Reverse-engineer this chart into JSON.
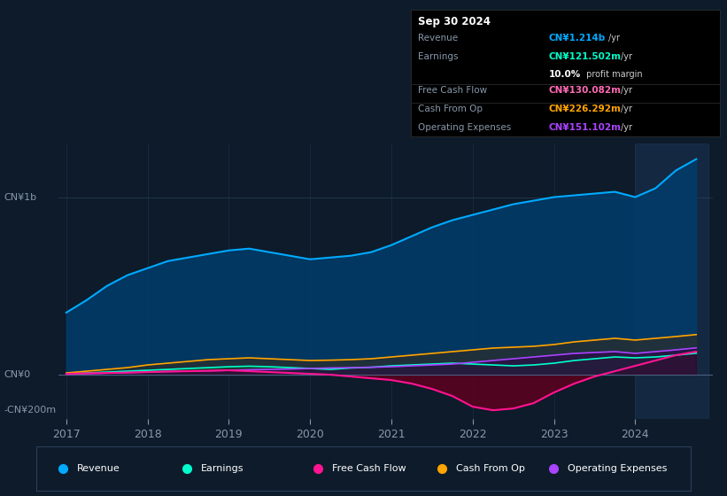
{
  "background_color": "#0d1b2a",
  "plot_bg_color": "#0d1b2a",
  "title_box": {
    "date": "Sep 30 2024",
    "rows": [
      {
        "label": "Revenue",
        "value": "CN¥1.214b",
        "unit": "/yr",
        "value_color": "#00aaff"
      },
      {
        "label": "Earnings",
        "value": "CN¥121.502m",
        "unit": "/yr",
        "value_color": "#00ffcc"
      },
      {
        "label": "",
        "value": "10.0%",
        "unit": " profit margin",
        "value_color": "#ffffff"
      },
      {
        "label": "Free Cash Flow",
        "value": "CN¥130.082m",
        "unit": "/yr",
        "value_color": "#ff69b4"
      },
      {
        "label": "Cash From Op",
        "value": "CN¥226.292m",
        "unit": "/yr",
        "value_color": "#ffa500"
      },
      {
        "label": "Operating Expenses",
        "value": "CN¥151.102m",
        "unit": "/yr",
        "value_color": "#aa44ff"
      }
    ]
  },
  "years": [
    2017.0,
    2017.25,
    2017.5,
    2017.75,
    2018.0,
    2018.25,
    2018.5,
    2018.75,
    2019.0,
    2019.25,
    2019.5,
    2019.75,
    2020.0,
    2020.25,
    2020.5,
    2020.75,
    2021.0,
    2021.25,
    2021.5,
    2021.75,
    2022.0,
    2022.25,
    2022.5,
    2022.75,
    2023.0,
    2023.25,
    2023.5,
    2023.75,
    2024.0,
    2024.25,
    2024.5,
    2024.75
  ],
  "revenue": [
    350,
    420,
    500,
    560,
    600,
    640,
    660,
    680,
    700,
    710,
    690,
    670,
    650,
    660,
    670,
    690,
    730,
    780,
    830,
    870,
    900,
    930,
    960,
    980,
    1000,
    1010,
    1020,
    1030,
    1000,
    1050,
    1150,
    1214
  ],
  "earnings": [
    5,
    10,
    15,
    20,
    25,
    30,
    35,
    40,
    45,
    48,
    45,
    40,
    35,
    30,
    38,
    42,
    50,
    55,
    60,
    65,
    60,
    55,
    50,
    55,
    65,
    80,
    90,
    100,
    95,
    100,
    110,
    121
  ],
  "free_cash_flow": [
    5,
    8,
    10,
    12,
    15,
    18,
    20,
    22,
    25,
    20,
    15,
    10,
    5,
    0,
    -10,
    -20,
    -30,
    -50,
    -80,
    -120,
    -180,
    -200,
    -190,
    -160,
    -100,
    -50,
    -10,
    20,
    50,
    80,
    110,
    130
  ],
  "cash_from_op": [
    10,
    20,
    30,
    40,
    55,
    65,
    75,
    85,
    90,
    95,
    90,
    85,
    80,
    82,
    85,
    90,
    100,
    110,
    120,
    130,
    140,
    150,
    155,
    160,
    170,
    185,
    195,
    205,
    195,
    205,
    215,
    226
  ],
  "op_expenses": [
    3,
    6,
    9,
    12,
    15,
    18,
    20,
    22,
    25,
    28,
    30,
    32,
    35,
    38,
    40,
    42,
    45,
    50,
    55,
    60,
    70,
    80,
    90,
    100,
    110,
    120,
    125,
    130,
    120,
    130,
    140,
    151
  ],
  "colors": {
    "revenue": "#00aaff",
    "earnings": "#00ffcc",
    "free_cash_flow": "#ff1493",
    "cash_from_op": "#ffa500",
    "op_expenses": "#aa44ff"
  },
  "ylim": [
    -250,
    1300
  ],
  "xlabel_ticks": [
    2017,
    2018,
    2019,
    2020,
    2021,
    2022,
    2023,
    2024
  ],
  "highlight_x_start": 2024.0,
  "legend": [
    {
      "label": "Revenue",
      "color": "#00aaff"
    },
    {
      "label": "Earnings",
      "color": "#00ffcc"
    },
    {
      "label": "Free Cash Flow",
      "color": "#ff1493"
    },
    {
      "label": "Cash From Op",
      "color": "#ffa500"
    },
    {
      "label": "Operating Expenses",
      "color": "#aa44ff"
    }
  ]
}
